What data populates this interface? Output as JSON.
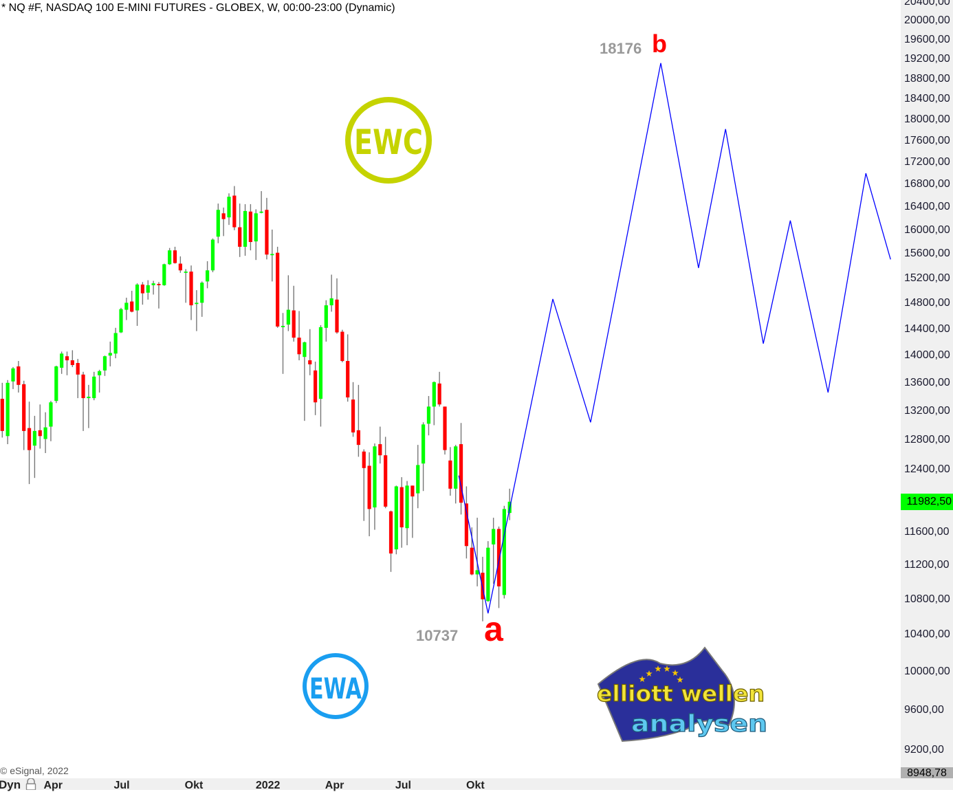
{
  "header": {
    "title": "* NQ #F, NASDAQ 100 E-MINI FUTURES - GLOBEX, W, 00:00-23:00 (Dynamic)"
  },
  "footer": {
    "copyright": "© eSignal, 2022",
    "mode_label": "Dyn",
    "lock_icon": "lock-icon"
  },
  "logos": {
    "ewc": {
      "text": "EWC",
      "color": "#c5d300"
    },
    "ewa": {
      "text": "EWA",
      "color": "#1a9ef0"
    },
    "elliott": {
      "line1": "elliott wellen",
      "line2": "analysen",
      "flag_color": "#2a2f9a",
      "star_color": "#f5c400",
      "line1_color": "#f2e43a",
      "line2_color": "#5ec8f0"
    }
  },
  "chart_data": {
    "type": "candlestick",
    "title": "",
    "timeframe": "weekly",
    "y_scale": "log",
    "ylim": [
      8925,
      20445
    ],
    "grid": false,
    "colors": {
      "up": "#00ff00",
      "down": "#ff0000",
      "wick": "#777777",
      "projection": "#0000ff",
      "last_price_bg": "#00ff00"
    },
    "y_ticks": [
      "20400,00",
      "20000,00",
      "19600,00",
      "19200,00",
      "18800,00",
      "18400,00",
      "18000,00",
      "17600,00",
      "17200,00",
      "16800,00",
      "16400,00",
      "16000,00",
      "15600,00",
      "15200,00",
      "14800,00",
      "14400,00",
      "14000,00",
      "13600,00",
      "13200,00",
      "12800,00",
      "12400,00",
      "11600,00",
      "11200,00",
      "10800,00",
      "10400,00",
      "10000,00",
      "9600,00",
      "9200,00"
    ],
    "last_price": "11982,50",
    "axis_bottom_value": "8948,78",
    "x_ticks": [
      {
        "label": "Apr",
        "date": "2021-04-01"
      },
      {
        "label": "Jul",
        "date": "2021-07-01"
      },
      {
        "label": "Okt",
        "date": "2021-10-01"
      },
      {
        "label": "2022",
        "date": "2022-01-01"
      },
      {
        "label": "Apr",
        "date": "2022-04-01"
      },
      {
        "label": "Jul",
        "date": "2022-07-01"
      },
      {
        "label": "Okt",
        "date": "2022-10-01"
      }
    ],
    "candle_fields": [
      "date",
      "open",
      "high",
      "low",
      "close"
    ],
    "candles": [
      [
        "2021-02-01",
        13370,
        13600,
        12830,
        12920
      ],
      [
        "2021-02-08",
        12850,
        13640,
        12740,
        13600
      ],
      [
        "2021-02-15",
        13620,
        13830,
        13510,
        13810
      ],
      [
        "2021-02-22",
        13840,
        13920,
        13460,
        13570
      ],
      [
        "2021-03-01",
        13580,
        13630,
        12660,
        12920
      ],
      [
        "2021-03-08",
        12960,
        13330,
        12210,
        12660
      ],
      [
        "2021-03-15",
        12720,
        13130,
        12290,
        12920
      ],
      [
        "2021-03-22",
        12930,
        13290,
        12680,
        12850
      ],
      [
        "2021-03-29",
        12810,
        13180,
        12620,
        12970
      ],
      [
        "2021-04-05",
        12980,
        13340,
        12780,
        13320
      ],
      [
        "2021-04-12",
        13340,
        13850,
        13310,
        13840
      ],
      [
        "2021-04-19",
        13820,
        14060,
        13730,
        14030
      ],
      [
        "2021-04-26",
        13990,
        14060,
        13710,
        13930
      ],
      [
        "2021-05-03",
        13930,
        14080,
        13830,
        13860
      ],
      [
        "2021-05-10",
        13890,
        13950,
        13380,
        13720
      ],
      [
        "2021-05-17",
        13720,
        13760,
        12920,
        13380
      ],
      [
        "2021-05-24",
        13380,
        13570,
        12960,
        13400
      ],
      [
        "2021-05-31",
        13380,
        13760,
        13350,
        13690
      ],
      [
        "2021-06-07",
        13710,
        13790,
        13460,
        13770
      ],
      [
        "2021-06-14",
        13780,
        14000,
        13700,
        13990
      ],
      [
        "2021-06-21",
        14000,
        14210,
        13840,
        14040
      ],
      [
        "2021-06-28",
        14030,
        14420,
        13960,
        14340
      ],
      [
        "2021-07-05",
        14350,
        14730,
        14340,
        14710
      ],
      [
        "2021-07-12",
        14700,
        14890,
        14540,
        14810
      ],
      [
        "2021-07-19",
        14830,
        15000,
        14660,
        14670
      ],
      [
        "2021-07-26",
        14690,
        15120,
        14450,
        15100
      ],
      [
        "2021-08-02",
        15100,
        15140,
        14780,
        14960
      ],
      [
        "2021-08-09",
        14970,
        15170,
        14860,
        15090
      ],
      [
        "2021-08-16",
        15090,
        15160,
        14940,
        15120
      ],
      [
        "2021-08-23",
        15110,
        15140,
        14720,
        15090
      ],
      [
        "2021-08-30",
        15090,
        15440,
        15080,
        15430
      ],
      [
        "2021-09-06",
        15430,
        15700,
        15420,
        15660
      ],
      [
        "2021-09-13",
        15660,
        15720,
        15440,
        15450
      ],
      [
        "2021-09-20",
        15440,
        15560,
        15290,
        15330
      ],
      [
        "2021-09-27",
        15290,
        15350,
        14810,
        15310
      ],
      [
        "2021-10-04",
        15310,
        15410,
        14540,
        14770
      ],
      [
        "2021-10-11",
        14790,
        15010,
        14370,
        14810
      ],
      [
        "2021-10-18",
        14810,
        15150,
        14590,
        15130
      ],
      [
        "2021-10-25",
        15150,
        15480,
        15040,
        15330
      ],
      [
        "2021-11-01",
        15330,
        15860,
        15300,
        15840
      ],
      [
        "2021-11-08",
        15890,
        16460,
        15780,
        16350
      ],
      [
        "2021-11-15",
        16290,
        16390,
        15900,
        16190
      ],
      [
        "2021-11-22",
        16220,
        16640,
        16090,
        16580
      ],
      [
        "2021-11-29",
        16600,
        16770,
        16000,
        16050
      ],
      [
        "2021-12-06",
        16050,
        16460,
        15550,
        15720
      ],
      [
        "2021-12-13",
        15720,
        16450,
        15570,
        16330
      ],
      [
        "2021-12-20",
        16320,
        16450,
        15660,
        15800
      ],
      [
        "2021-12-27",
        15810,
        16360,
        15500,
        16290
      ],
      [
        "2022-01-03",
        16300,
        16680,
        16290,
        16320
      ],
      [
        "2022-01-10",
        16350,
        16560,
        15510,
        15590
      ],
      [
        "2022-01-17",
        15580,
        16010,
        15150,
        15600
      ],
      [
        "2022-01-24",
        15620,
        15720,
        14420,
        14440
      ],
      [
        "2022-01-31",
        14430,
        14650,
        13730,
        14450
      ],
      [
        "2022-02-07",
        14470,
        15250,
        14370,
        14700
      ],
      [
        "2022-02-14",
        14690,
        15080,
        14210,
        14270
      ],
      [
        "2022-02-21",
        14270,
        14680,
        13930,
        14020
      ],
      [
        "2022-02-28",
        13980,
        14210,
        13060,
        14200
      ],
      [
        "2022-03-07",
        13930,
        14400,
        13710,
        13870
      ],
      [
        "2022-03-14",
        13780,
        13910,
        13140,
        13320
      ],
      [
        "2022-03-21",
        13370,
        14460,
        12980,
        14430
      ],
      [
        "2022-03-28",
        14420,
        14850,
        14210,
        14770
      ],
      [
        "2022-04-04",
        14770,
        15260,
        14670,
        14880
      ],
      [
        "2022-04-11",
        14860,
        15200,
        14330,
        14350
      ],
      [
        "2022-04-18",
        14360,
        14390,
        13900,
        13920
      ],
      [
        "2022-04-25",
        13920,
        14320,
        13330,
        13390
      ],
      [
        "2022-05-02",
        13360,
        13610,
        12840,
        12900
      ],
      [
        "2022-05-09",
        12930,
        13570,
        12570,
        12730
      ],
      [
        "2022-05-16",
        12640,
        12670,
        11740,
        12420
      ],
      [
        "2022-05-23",
        12450,
        12630,
        11550,
        11890
      ],
      [
        "2022-05-30",
        11910,
        12750,
        11630,
        12710
      ],
      [
        "2022-06-06",
        12740,
        12980,
        12480,
        12590
      ],
      [
        "2022-06-13",
        12590,
        12840,
        11900,
        11920
      ],
      [
        "2022-06-20",
        11860,
        11870,
        11120,
        11340
      ],
      [
        "2022-06-27",
        11390,
        12190,
        11330,
        12180
      ],
      [
        "2022-07-04",
        12170,
        12300,
        11410,
        11660
      ],
      [
        "2022-07-11",
        11650,
        12250,
        11440,
        12190
      ],
      [
        "2022-07-18",
        12190,
        12190,
        11530,
        12050
      ],
      [
        "2022-07-25",
        12090,
        12730,
        11900,
        12460
      ],
      [
        "2022-08-01",
        12480,
        13040,
        12120,
        13010
      ],
      [
        "2022-08-08",
        13020,
        13410,
        12860,
        13260
      ],
      [
        "2022-08-15",
        13260,
        13620,
        13000,
        13610
      ],
      [
        "2022-08-22",
        13590,
        13760,
        13260,
        13290
      ],
      [
        "2022-08-29",
        13260,
        13260,
        12600,
        12660
      ],
      [
        "2022-09-05",
        12520,
        12700,
        12060,
        12150
      ],
      [
        "2022-09-12",
        12150,
        12730,
        11960,
        12710
      ],
      [
        "2022-09-19",
        12740,
        13030,
        11820,
        11970
      ],
      [
        "2022-09-26",
        11960,
        12180,
        11280,
        11430
      ],
      [
        "2022-10-03",
        11410,
        11660,
        11080,
        11090
      ],
      [
        "2022-10-10",
        11090,
        11780,
        10950,
        11140
      ],
      [
        "2022-10-17",
        11110,
        11300,
        10550,
        10800
      ],
      [
        "2022-10-24",
        10780,
        11490,
        10770,
        11410
      ],
      [
        "2022-10-31",
        11450,
        11780,
        10980,
        11640
      ],
      [
        "2022-11-07",
        11640,
        11670,
        10700,
        10950
      ],
      [
        "2022-11-14",
        10850,
        11930,
        10810,
        11890
      ],
      [
        "2022-11-21",
        11840,
        12150,
        11750,
        11982.5
      ]
    ],
    "projection": [
      {
        "date": "2022-09-16",
        "price": 12320
      },
      {
        "date": "2022-10-24",
        "price": 10640
      },
      {
        "date": "2023-01-16",
        "price": 14870
      },
      {
        "date": "2023-03-06",
        "price": 13040
      },
      {
        "date": "2023-06-05",
        "price": 19117
      },
      {
        "date": "2023-07-24",
        "price": 15370
      },
      {
        "date": "2023-08-28",
        "price": 17820
      },
      {
        "date": "2023-10-16",
        "price": 14180
      },
      {
        "date": "2023-11-20",
        "price": 16165
      },
      {
        "date": "2024-01-08",
        "price": 13460
      },
      {
        "date": "2024-02-26",
        "price": 17000
      },
      {
        "date": "2024-03-29",
        "price": 15510
      }
    ],
    "annotations": [
      {
        "id": "b",
        "letter": "b",
        "value": "18176"
      },
      {
        "id": "a",
        "letter": "a",
        "value": "10737"
      }
    ]
  }
}
